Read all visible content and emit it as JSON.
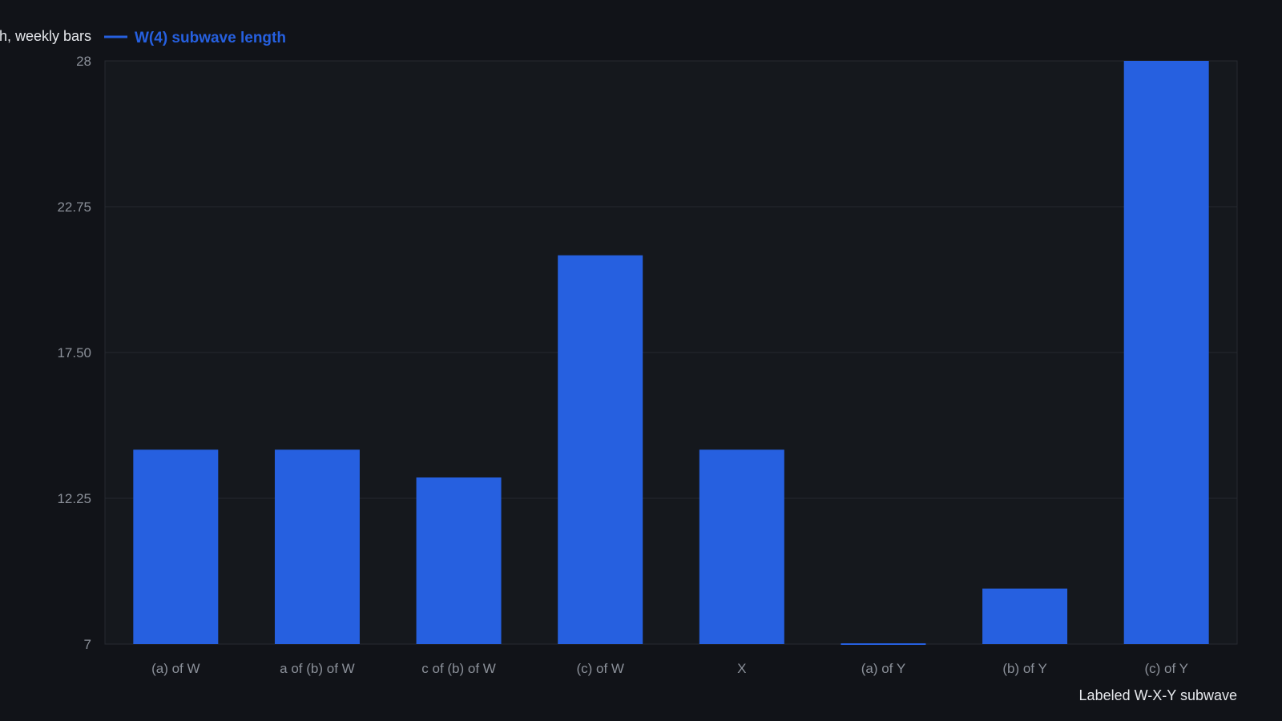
{
  "chart_data": {
    "type": "bar",
    "ylabel": "Wave length, weekly bars",
    "xlabel": "Labeled W-X-Y subwave",
    "categories": [
      "(a) of W",
      "a of (b) of W",
      "c of (b) of W",
      "(c) of W",
      "X",
      "(a) of Y",
      "(b) of Y",
      "(c) of Y"
    ],
    "series": [
      {
        "name": "W(4) subwave length",
        "values": [
          14,
          14,
          13,
          21,
          14,
          7,
          9,
          28
        ],
        "color": "#2660e0"
      }
    ],
    "ylim": [
      7,
      28
    ],
    "yticks": [
      "7",
      "12.25",
      "17.50",
      "22.75",
      "28"
    ],
    "grid": true,
    "legend_position": "top-left"
  }
}
